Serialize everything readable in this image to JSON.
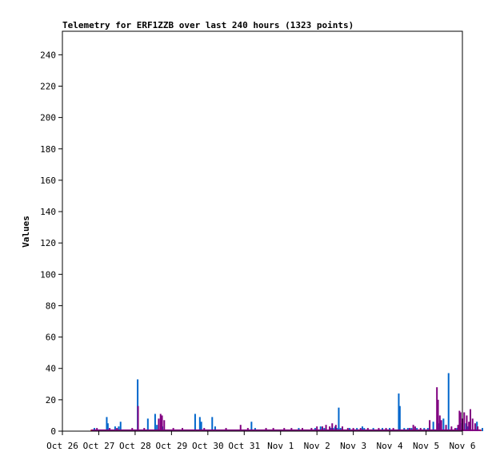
{
  "chart_data": {
    "type": "bar",
    "title": "Telemetry for ERF1ZZB over last 240 hours (1323 points)",
    "xlabel": "",
    "ylabel": "Values",
    "ylim": [
      0,
      255
    ],
    "yticks": [
      0,
      20,
      40,
      60,
      80,
      100,
      120,
      140,
      160,
      180,
      200,
      220,
      240
    ],
    "xlim_days": [
      0,
      11
    ],
    "xtick_labels": [
      "Oct 26",
      "Oct 27",
      "Oct 28",
      "Oct 29",
      "Oct 30",
      "Oct 31",
      "Nov 1",
      "Nov 2",
      "Nov 3",
      "Nov 4",
      "Nov 5",
      "Nov 6"
    ],
    "grid": false,
    "legend": "none",
    "colors": [
      "#0066cc",
      "#800080",
      "#cc0000"
    ],
    "series": [
      {
        "values": [
          [
            0.88,
            2
          ],
          [
            1.22,
            9
          ],
          [
            1.25,
            5
          ],
          [
            1.45,
            3
          ],
          [
            1.55,
            3
          ],
          [
            1.6,
            6
          ],
          [
            2.07,
            33
          ],
          [
            2.35,
            8
          ],
          [
            2.55,
            11
          ],
          [
            2.6,
            4
          ],
          [
            2.75,
            3
          ],
          [
            3.65,
            11
          ],
          [
            3.78,
            9
          ],
          [
            3.82,
            6
          ],
          [
            4.12,
            9
          ],
          [
            4.2,
            3
          ],
          [
            5.2,
            6
          ],
          [
            5.3,
            2
          ],
          [
            6.5,
            2
          ],
          [
            6.95,
            2
          ],
          [
            7.1,
            3
          ],
          [
            7.2,
            2
          ],
          [
            7.38,
            2
          ],
          [
            7.45,
            2
          ],
          [
            7.5,
            3
          ],
          [
            7.55,
            2
          ],
          [
            7.6,
            15
          ],
          [
            7.65,
            2
          ],
          [
            7.9,
            2
          ],
          [
            8.1,
            2
          ],
          [
            8.25,
            3
          ],
          [
            8.3,
            2
          ],
          [
            8.55,
            2
          ],
          [
            8.8,
            2
          ],
          [
            9.0,
            2
          ],
          [
            9.25,
            24
          ],
          [
            9.28,
            16
          ],
          [
            9.4,
            2
          ],
          [
            9.5,
            2
          ],
          [
            9.6,
            2
          ],
          [
            9.75,
            2
          ],
          [
            9.95,
            2
          ],
          [
            10.05,
            2
          ],
          [
            10.2,
            6
          ],
          [
            10.35,
            5
          ],
          [
            10.48,
            8
          ],
          [
            10.62,
            37
          ],
          [
            10.85,
            2
          ],
          [
            10.95,
            5
          ],
          [
            11.1,
            5
          ],
          [
            11.15,
            3
          ],
          [
            11.4,
            6
          ],
          [
            11.55,
            2
          ]
        ]
      },
      {
        "values": [
          [
            0.82,
            1
          ],
          [
            0.95,
            2
          ],
          [
            1.3,
            2
          ],
          [
            1.5,
            2
          ],
          [
            1.92,
            2
          ],
          [
            2.08,
            16
          ],
          [
            2.25,
            2
          ],
          [
            2.65,
            8
          ],
          [
            2.7,
            11
          ],
          [
            2.74,
            10
          ],
          [
            2.8,
            7
          ],
          [
            3.05,
            2
          ],
          [
            3.3,
            2
          ],
          [
            3.9,
            2
          ],
          [
            4.5,
            2
          ],
          [
            4.9,
            4
          ],
          [
            5.1,
            2
          ],
          [
            5.6,
            2
          ],
          [
            5.8,
            2
          ],
          [
            6.1,
            2
          ],
          [
            6.3,
            2
          ],
          [
            6.6,
            2
          ],
          [
            6.85,
            2
          ],
          [
            7.0,
            3
          ],
          [
            7.15,
            3
          ],
          [
            7.25,
            4
          ],
          [
            7.35,
            3
          ],
          [
            7.42,
            5
          ],
          [
            7.52,
            4
          ],
          [
            7.7,
            3
          ],
          [
            7.85,
            2
          ],
          [
            8.0,
            2
          ],
          [
            8.2,
            2
          ],
          [
            8.4,
            2
          ],
          [
            8.7,
            2
          ],
          [
            8.9,
            2
          ],
          [
            9.1,
            2
          ],
          [
            9.55,
            2
          ],
          [
            9.65,
            4
          ],
          [
            9.7,
            3
          ],
          [
            9.85,
            2
          ],
          [
            10.1,
            7
          ],
          [
            10.3,
            28
          ],
          [
            10.33,
            20
          ],
          [
            10.38,
            10
          ],
          [
            10.42,
            7
          ],
          [
            10.55,
            4
          ],
          [
            10.7,
            3
          ],
          [
            10.8,
            2
          ],
          [
            10.88,
            4
          ],
          [
            10.92,
            13
          ],
          [
            10.95,
            12
          ],
          [
            11.0,
            8
          ],
          [
            11.05,
            12
          ],
          [
            11.12,
            10
          ],
          [
            11.18,
            6
          ],
          [
            11.22,
            14
          ],
          [
            11.28,
            8
          ],
          [
            11.35,
            5
          ],
          [
            11.42,
            3
          ]
        ]
      },
      {
        "values": [
          [
            0.8,
            1
          ],
          [
            1.0,
            1
          ],
          [
            2.0,
            1
          ],
          [
            3.0,
            1
          ],
          [
            4.0,
            1
          ],
          [
            5.0,
            1
          ],
          [
            6.0,
            1
          ],
          [
            7.0,
            1
          ],
          [
            8.0,
            1
          ],
          [
            9.0,
            1
          ],
          [
            10.0,
            1
          ],
          [
            11.0,
            1
          ],
          [
            11.5,
            1
          ]
        ]
      }
    ]
  }
}
